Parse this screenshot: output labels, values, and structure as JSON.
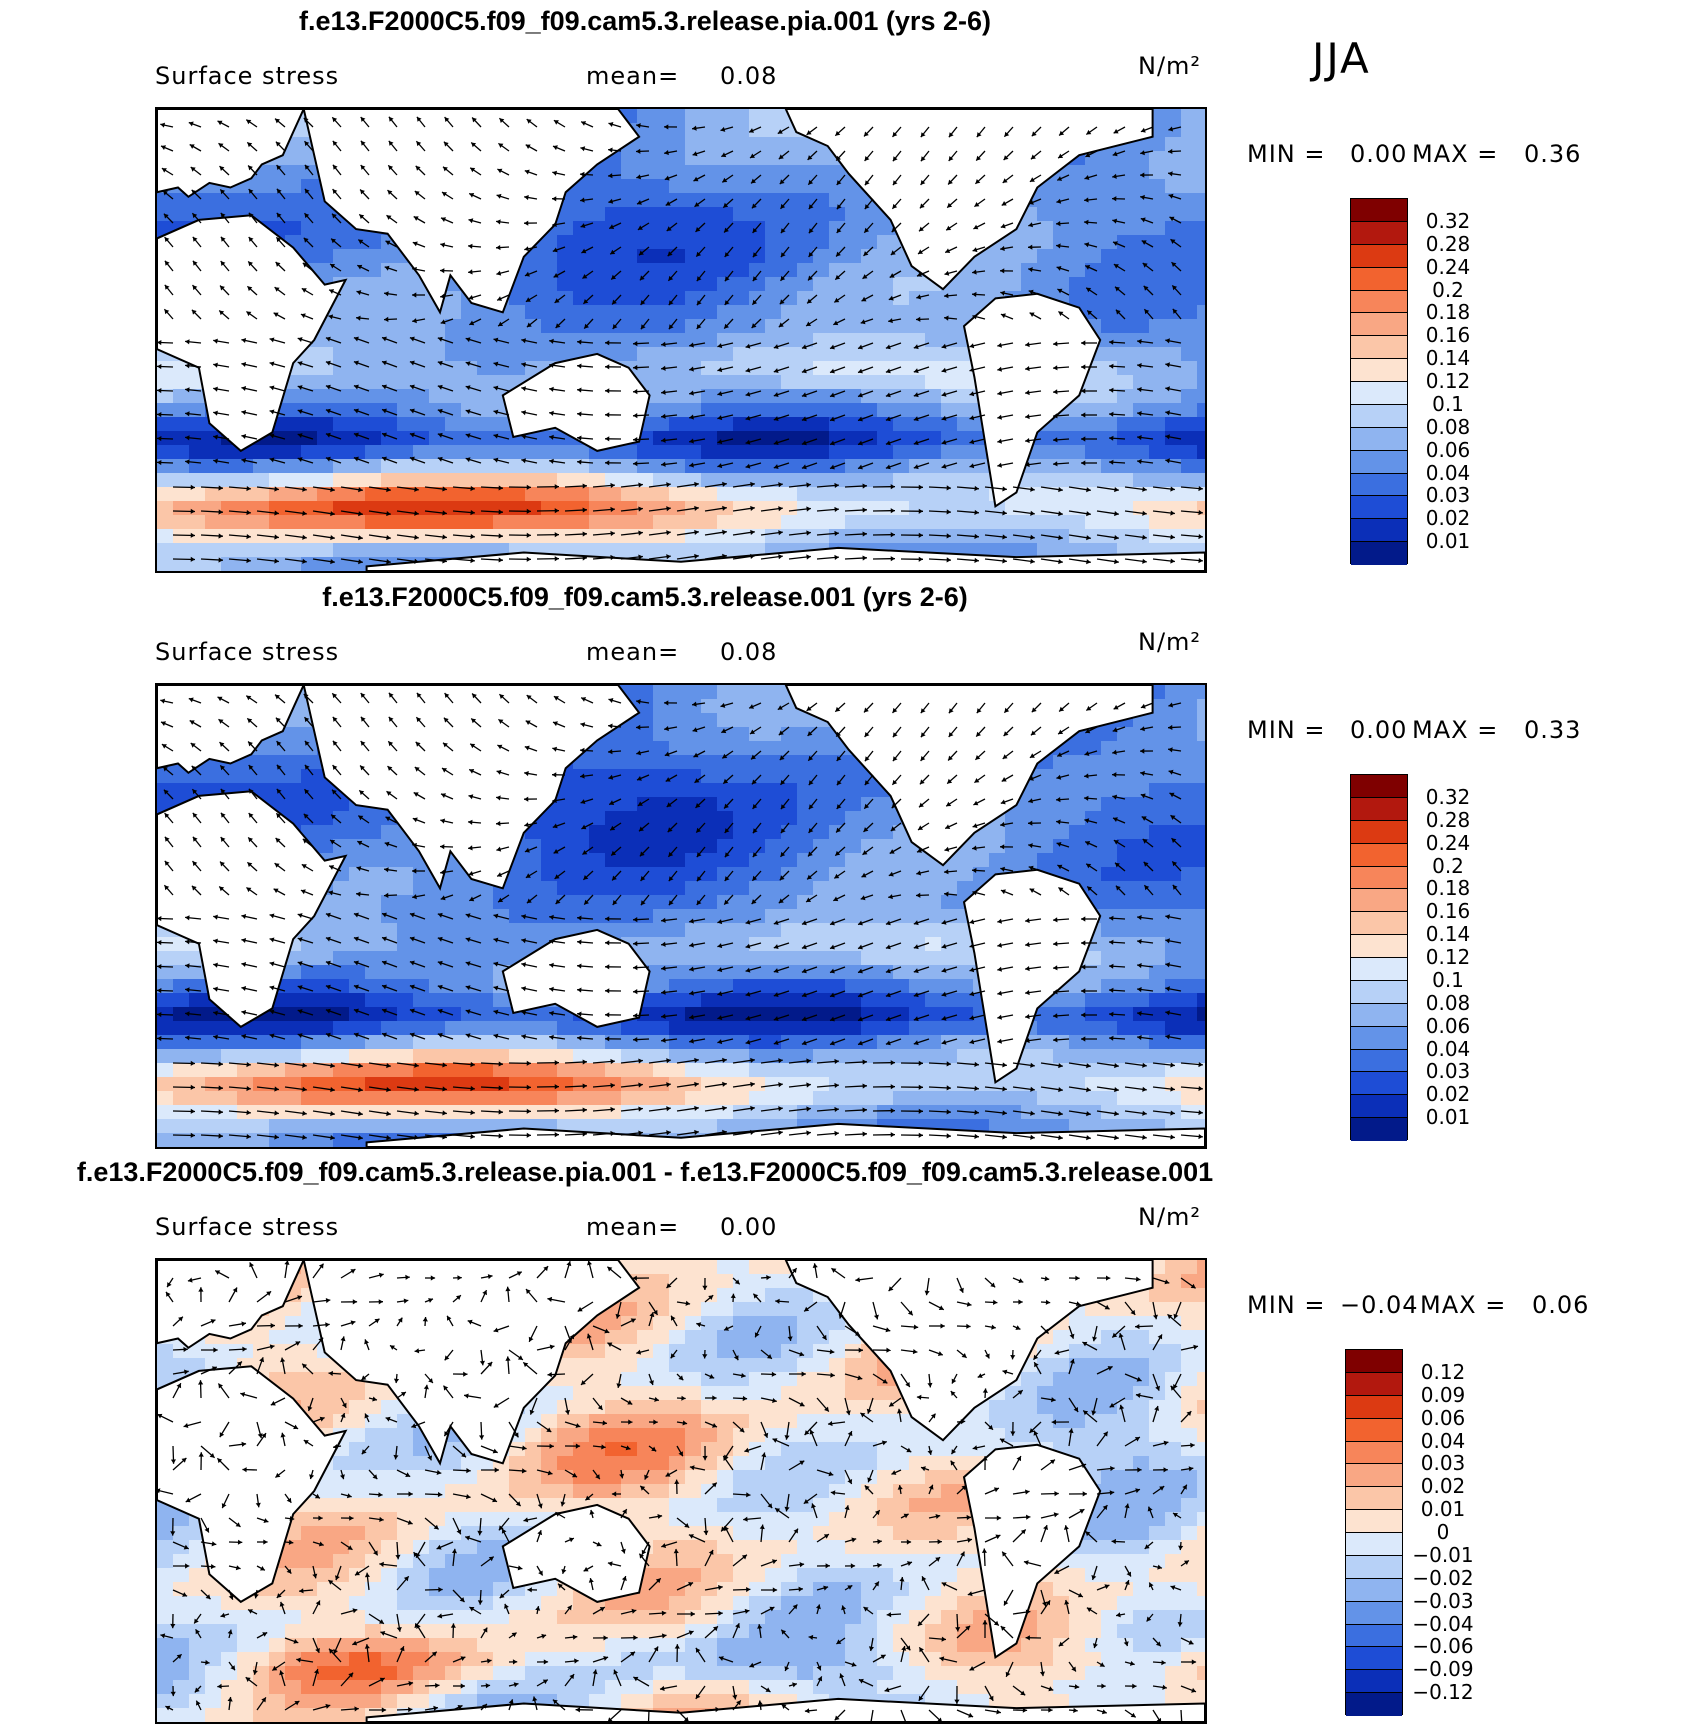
{
  "season": "JJA",
  "chart_data": [
    {
      "type": "heatmap",
      "title": "f.e13.F2000C5.f09_f09.cam5.3.release.pia.001 (yrs 2-6)",
      "variable": "Surface stress",
      "mean_label": "mean=",
      "mean": "0.08",
      "units": "N/m²",
      "min_label": "MIN =",
      "min": "0.00",
      "max_label": "MAX =",
      "max": "0.36",
      "colorbar_levels": [
        "0.32",
        "0.28",
        "0.24",
        "0.2",
        "0.18",
        "0.16",
        "0.14",
        "0.12",
        "0.1",
        "0.08",
        "0.06",
        "0.04",
        "0.03",
        "0.02",
        "0.01"
      ],
      "colorbar_colors": [
        "#7f0000",
        "#b2180e",
        "#dc3a12",
        "#f2632f",
        "#f7855a",
        "#f9a784",
        "#fbc6a8",
        "#fde3d0",
        "#dbe9fb",
        "#b7d1f7",
        "#8fb4f0",
        "#6393e8",
        "#3b6fe0",
        "#1e4dd6",
        "#0b2fb8",
        "#021a8a"
      ],
      "vectors": true
    },
    {
      "type": "heatmap",
      "title": "f.e13.F2000C5.f09_f09.cam5.3.release.001 (yrs 2-6)",
      "variable": "Surface stress",
      "mean_label": "mean=",
      "mean": "0.08",
      "units": "N/m²",
      "min_label": "MIN =",
      "min": "0.00",
      "max_label": "MAX =",
      "max": "0.33",
      "colorbar_levels": [
        "0.32",
        "0.28",
        "0.24",
        "0.2",
        "0.18",
        "0.16",
        "0.14",
        "0.12",
        "0.1",
        "0.08",
        "0.06",
        "0.04",
        "0.03",
        "0.02",
        "0.01"
      ],
      "colorbar_colors": [
        "#7f0000",
        "#b2180e",
        "#dc3a12",
        "#f2632f",
        "#f7855a",
        "#f9a784",
        "#fbc6a8",
        "#fde3d0",
        "#dbe9fb",
        "#b7d1f7",
        "#8fb4f0",
        "#6393e8",
        "#3b6fe0",
        "#1e4dd6",
        "#0b2fb8",
        "#021a8a"
      ],
      "vectors": true
    },
    {
      "type": "heatmap",
      "title": "f.e13.F2000C5.f09_f09.cam5.3.release.pia.001 - f.e13.F2000C5.f09_f09.cam5.3.release.001",
      "variable": "Surface stress",
      "mean_label": "mean=",
      "mean": "0.00",
      "units": "N/m²",
      "min_label": "MIN =",
      "min": "−0.04",
      "max_label": "MAX =",
      "max": "0.06",
      "colorbar_levels": [
        "0.12",
        "0.09",
        "0.06",
        "0.04",
        "0.03",
        "0.02",
        "0.01",
        "0",
        "−0.01",
        "−0.02",
        "−0.03",
        "−0.04",
        "−0.06",
        "−0.09",
        "−0.12"
      ],
      "colorbar_colors": [
        "#7f0000",
        "#b2180e",
        "#dc3a12",
        "#f2632f",
        "#f7855a",
        "#f9a784",
        "#fbc6a8",
        "#fde3d0",
        "#dbe9fb",
        "#b7d1f7",
        "#8fb4f0",
        "#6393e8",
        "#3b6fe0",
        "#1e4dd6",
        "#0b2fb8",
        "#021a8a"
      ],
      "vectors": true
    }
  ]
}
